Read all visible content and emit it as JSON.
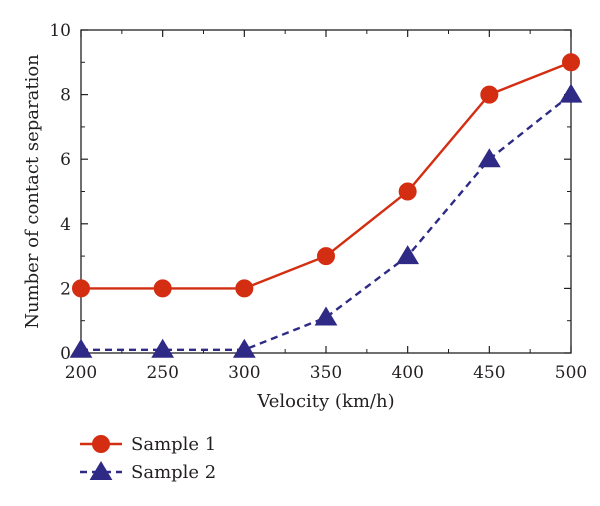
{
  "chart_data": {
    "type": "line",
    "xlabel": "Velocity (km/h)",
    "ylabel": "Number of contact separation",
    "x": [
      200,
      250,
      300,
      350,
      400,
      450,
      500
    ],
    "xlim": [
      200,
      500
    ],
    "ylim": [
      0,
      10
    ],
    "xticks": [
      "200",
      "250",
      "300",
      "350",
      "400",
      "450",
      "500"
    ],
    "yticks": [
      "0",
      "2",
      "4",
      "6",
      "8",
      "10"
    ],
    "grid": false,
    "legend_position": "bottom-left, below plot",
    "series": [
      {
        "name": "Sample 1",
        "values": [
          2,
          2,
          2,
          3,
          5,
          8,
          9
        ],
        "color": "#d42e12",
        "marker": "circle",
        "line_style": "solid"
      },
      {
        "name": "Sample 2",
        "values": [
          0.1,
          0.1,
          0.1,
          1.1,
          3,
          6,
          8
        ],
        "color": "#2e2a85",
        "marker": "triangle",
        "line_style": "dashed"
      }
    ]
  }
}
